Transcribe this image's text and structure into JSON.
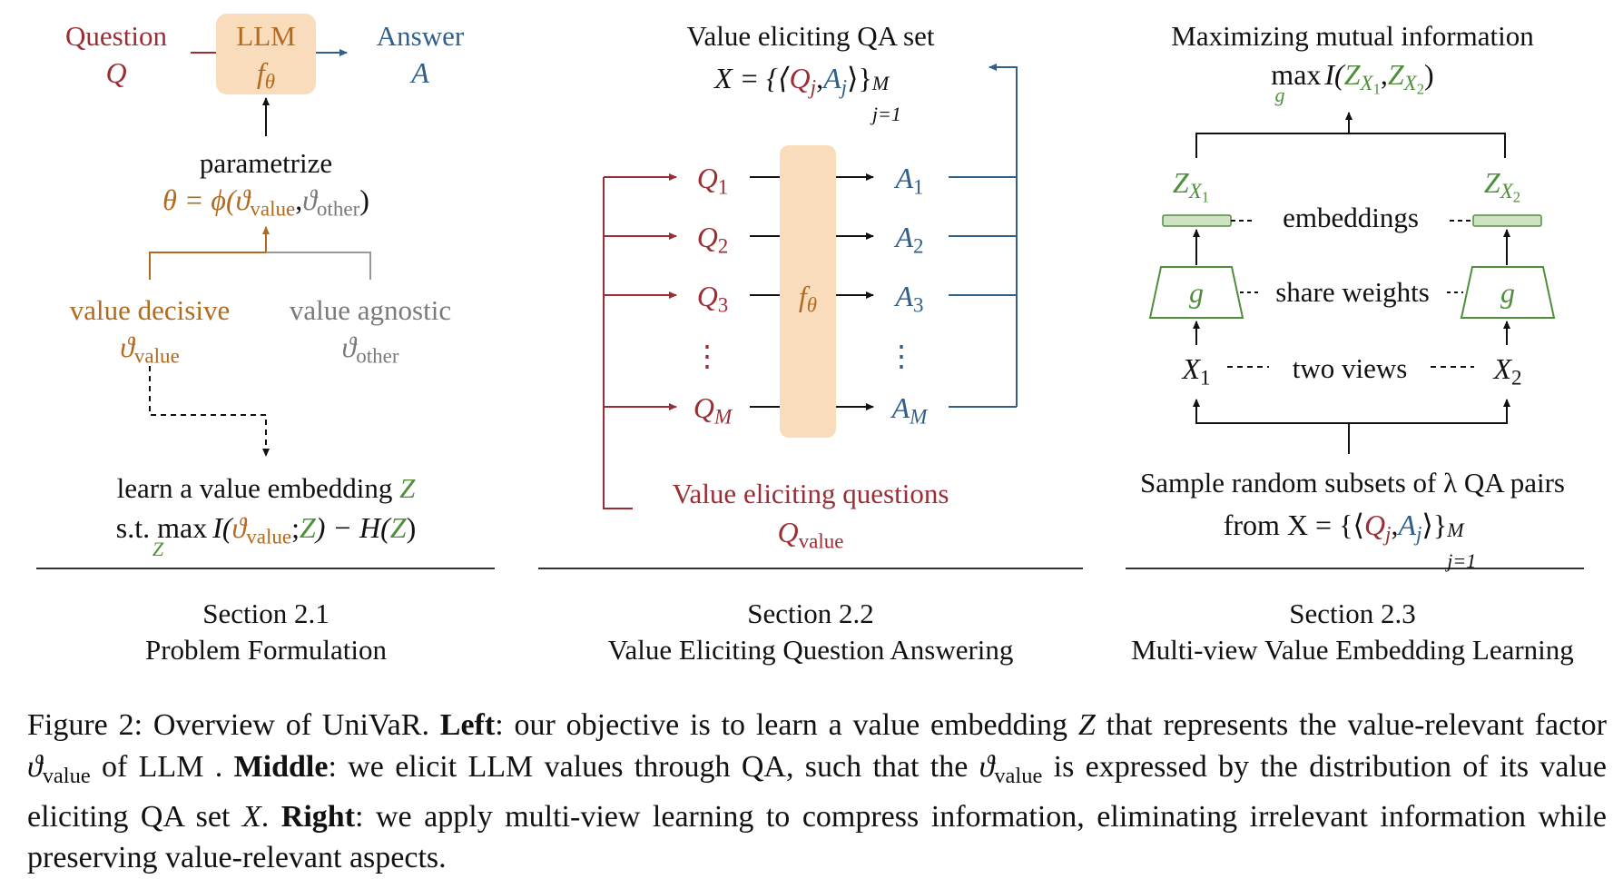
{
  "left": {
    "question_label": "Question",
    "question_symbol": "Q",
    "llm_label": "LLM",
    "llm_symbol": "f",
    "llm_symbol_sub": "θ",
    "answer_label": "Answer",
    "answer_symbol": "A",
    "parametrize": "parametrize",
    "theta_eq_prefix": "θ = ϕ(",
    "theta_eq_value": "ϑ",
    "theta_eq_value_sub": "value",
    "theta_eq_other": "ϑ",
    "theta_eq_other_sub": "other",
    "value_decisive": "value decisive",
    "value_decisive_sym": "ϑ",
    "value_decisive_sub": "value",
    "value_agnostic": "value agnostic",
    "value_agnostic_sym": "ϑ",
    "value_agnostic_sub": "other",
    "learn_line": "learn a value embedding",
    "learn_z": "Z",
    "st_line_prefix": "s.t. max",
    "st_line_under": "Z",
    "st_I": "I(",
    "st_theta": "ϑ",
    "st_theta_sub": "value",
    "st_z1": "Z",
    "st_mid": ") − H(",
    "st_z2": "Z",
    "section": "Section 2.1",
    "section_title": "Problem Formulation"
  },
  "middle": {
    "title": "Value eliciting QA set",
    "set_x": "X = {⟨",
    "set_q": "Q",
    "set_a": "A",
    "set_j": "j",
    "set_close": "⟩}",
    "set_sup": "M",
    "set_sub": "j=1",
    "questions": [
      {
        "sym": "Q",
        "sub": "1"
      },
      {
        "sym": "Q",
        "sub": "2"
      },
      {
        "sym": "Q",
        "sub": "3"
      },
      {
        "sym": "⋮",
        "sub": ""
      },
      {
        "sym": "Q",
        "sub": "M"
      }
    ],
    "answers": [
      {
        "sym": "A",
        "sub": "1"
      },
      {
        "sym": "A",
        "sub": "2"
      },
      {
        "sym": "A",
        "sub": "3"
      },
      {
        "sym": "⋮",
        "sub": ""
      },
      {
        "sym": "A",
        "sub": "M"
      }
    ],
    "f_symbol": "f",
    "f_sub": "θ",
    "veq_label": "Value eliciting questions",
    "veq_symbol": "Q",
    "veq_sub": "value",
    "section": "Section 2.2",
    "section_title": "Value Eliciting Question Answering"
  },
  "right": {
    "title": "Maximizing mutual information",
    "max": "max",
    "max_under": "g",
    "mi_I": "I(",
    "z": "Z",
    "x1_sub": "X",
    "x1_subsub": "1",
    "x2_subsub": "2",
    "embeddings": "embeddings",
    "share_weights": "share weights",
    "g": "g",
    "two_views": "two views",
    "x_sym": "X",
    "sample_line": "Sample random subsets of λ QA pairs",
    "from_line": "from X = {⟨",
    "from_q": "Q",
    "from_a": "A",
    "from_j": "j",
    "from_close": "⟩}",
    "from_sup": "M",
    "from_sub": "j=1",
    "section": "Section 2.3",
    "section_title": "Multi-view Value Embedding Learning"
  },
  "caption": {
    "fig_label": "Figure 2: Overview of UniVaR.",
    "left_bold": "Left",
    "left_text": ": our objective is to learn a value embedding",
    "z": "Z",
    "left_text2": "that represents the value-relevant factor",
    "theta": "ϑ",
    "theta_sub": "value",
    "left_text3": "of LLM .",
    "middle_bold": "Middle",
    "middle_text": ": we elicit LLM values through QA, such that the",
    "middle_text2": "is expressed by the distribution of its value eliciting QA set",
    "x": "X",
    "right_bold": "Right",
    "right_text": ": we apply multi-view learning to compress information, eliminating irrelevant information while preserving value-relevant aspects."
  },
  "colors": {
    "red": "#9b2d35",
    "blue": "#2f5f8a",
    "orange": "#b26a1e",
    "gray": "#7a7a7a",
    "green": "#4f8f3b",
    "box_fill": "#f9dcbc",
    "embed_fill": "#cfe2c4"
  }
}
